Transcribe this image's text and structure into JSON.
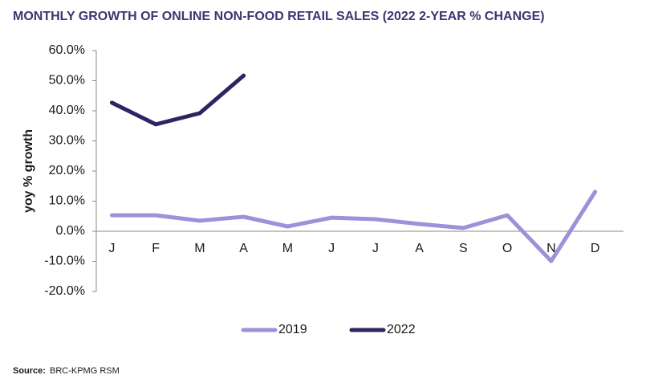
{
  "chart_data": {
    "type": "line",
    "title": "MONTHLY GROWTH OF ONLINE NON-FOOD RETAIL SALES (2022 2-YEAR % CHANGE)",
    "y_label": "yoy % growth",
    "categories": [
      "J",
      "F",
      "M",
      "A",
      "M",
      "J",
      "J",
      "A",
      "S",
      "O",
      "N",
      "D"
    ],
    "series": [
      {
        "name": "2019",
        "color": "#9b93d8",
        "values": [
          5.3,
          5.3,
          3.5,
          4.8,
          1.6,
          4.5,
          4.0,
          2.4,
          1.1,
          5.3,
          -9.9,
          13.1
        ]
      },
      {
        "name": "2022",
        "color": "#2a2563",
        "values": [
          42.7,
          35.5,
          39.2,
          51.7,
          null,
          null,
          null,
          null,
          null,
          null,
          null,
          null
        ]
      }
    ],
    "ylim": [
      -20,
      60
    ],
    "yticks": [
      {
        "value": -20,
        "label": "-20.0%"
      },
      {
        "value": -10,
        "label": "-10.0%"
      },
      {
        "value": 0,
        "label": "0.0%"
      },
      {
        "value": 10,
        "label": "10.0%"
      },
      {
        "value": 20,
        "label": "20.0%"
      },
      {
        "value": 30,
        "label": "30.0%"
      },
      {
        "value": 40,
        "label": "40.0%"
      },
      {
        "value": 50,
        "label": "50.0%"
      },
      {
        "value": 60,
        "label": "60.0%"
      }
    ],
    "grid": false,
    "legend": "bottom",
    "source_label": "Source:",
    "source": "BRC-KPMG RSM"
  }
}
